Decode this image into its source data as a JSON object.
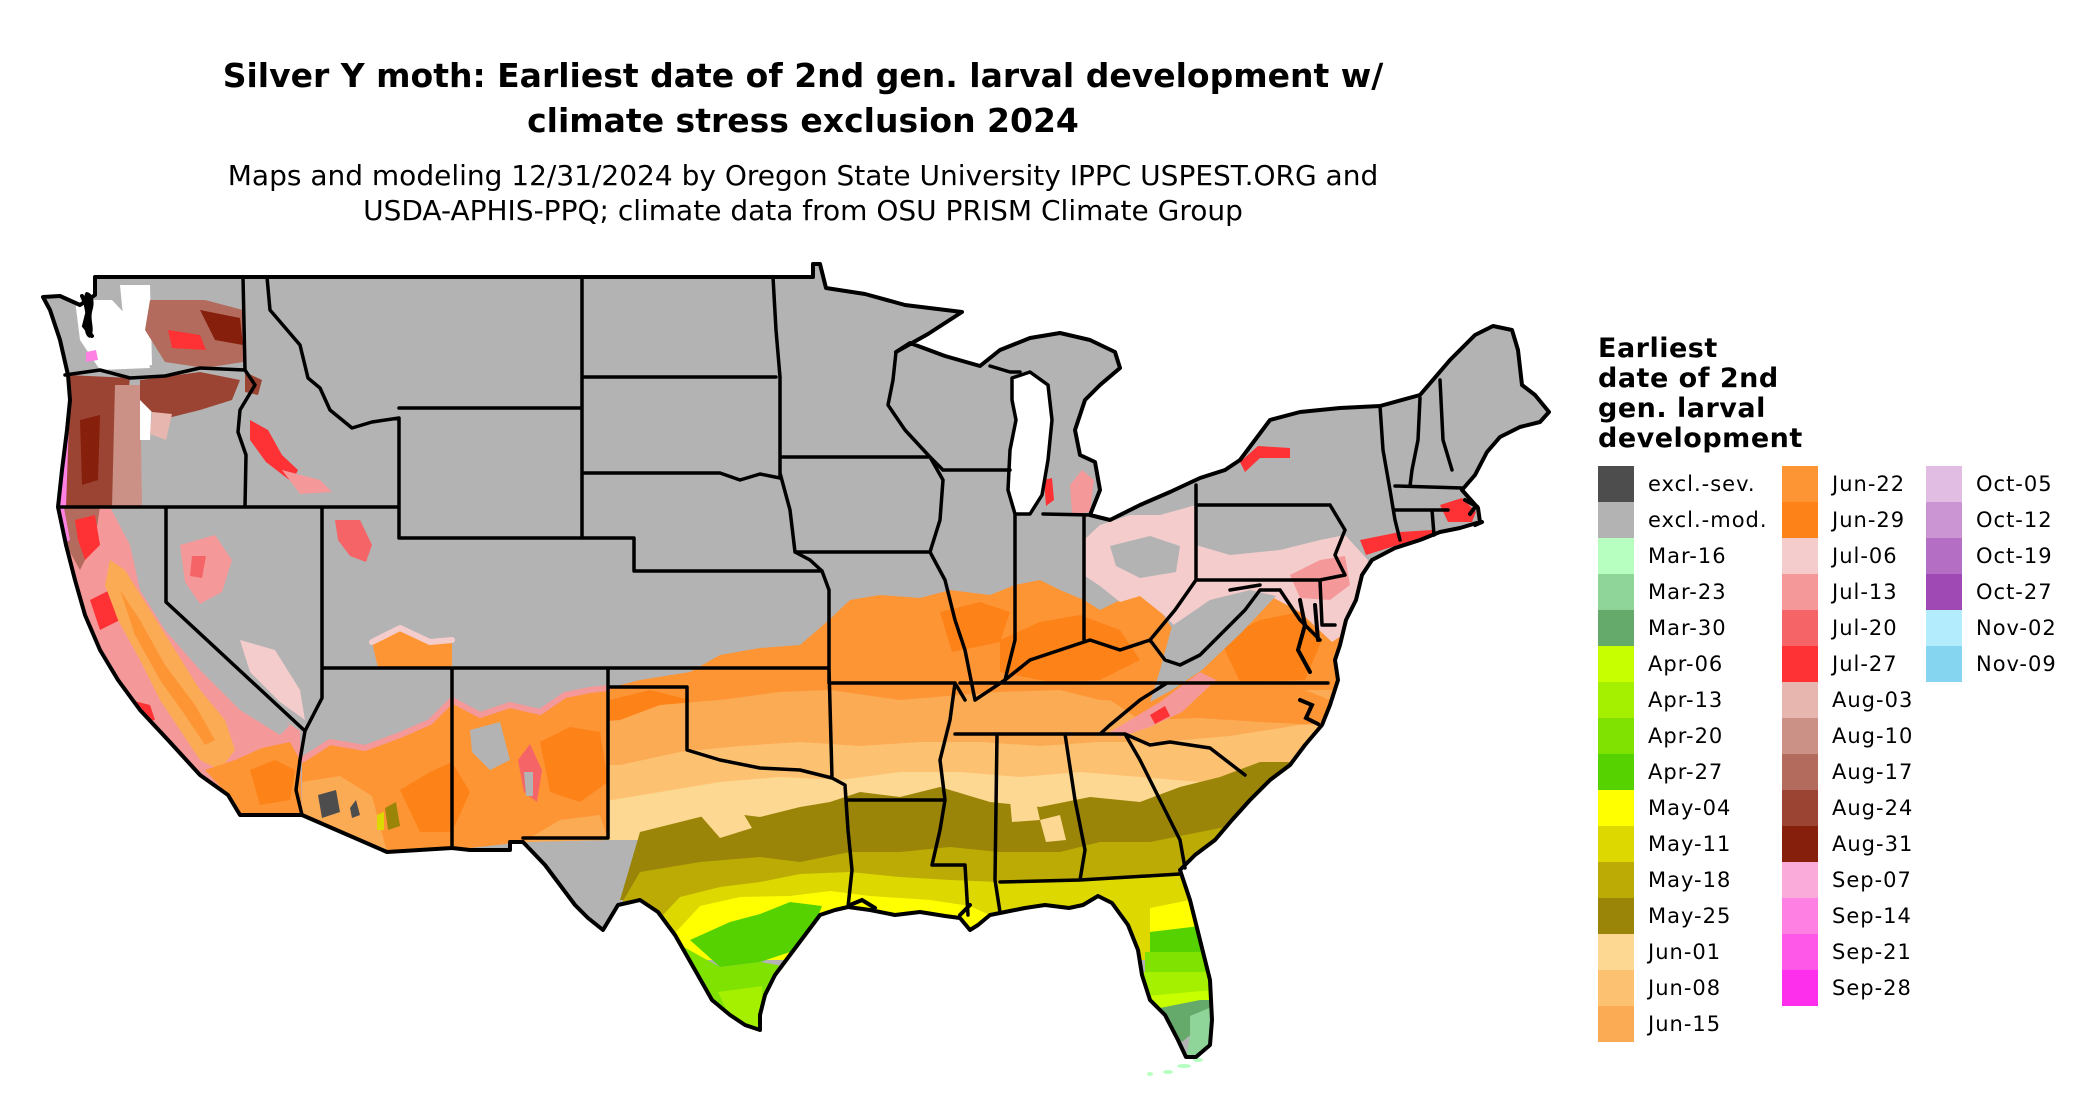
{
  "title": {
    "line1": "Silver Y moth: Earliest date of 2nd gen. larval development w/",
    "line2": "climate stress exclusion 2024"
  },
  "subtitle": {
    "line1": "Maps and modeling 12/31/2024 by Oregon State University IPPC USPEST.ORG and",
    "line2": "USDA-APHIS-PPQ; climate data from OSU PRISM Climate Group"
  },
  "legend": {
    "title_lines": [
      "Earliest",
      "date of 2nd",
      "gen. larval",
      "development"
    ],
    "items": [
      {
        "label": "excl.-sev.",
        "color": "#4d4d4d"
      },
      {
        "label": "excl.-mod.",
        "color": "#b3b3b3"
      },
      {
        "label": "Mar-16",
        "color": "#b6ffc0"
      },
      {
        "label": "Mar-23",
        "color": "#8fd498"
      },
      {
        "label": "Mar-30",
        "color": "#66aa6b"
      },
      {
        "label": "Apr-06",
        "color": "#c8ff00"
      },
      {
        "label": "Apr-13",
        "color": "#a5f000"
      },
      {
        "label": "Apr-20",
        "color": "#80e200"
      },
      {
        "label": "Apr-27",
        "color": "#55d200"
      },
      {
        "label": "May-04",
        "color": "#ffff00"
      },
      {
        "label": "May-11",
        "color": "#ddd800"
      },
      {
        "label": "May-18",
        "color": "#bbab04"
      },
      {
        "label": "May-25",
        "color": "#9a8508"
      },
      {
        "label": "Jun-01",
        "color": "#fdd892"
      },
      {
        "label": "Jun-08",
        "color": "#fdc271"
      },
      {
        "label": "Jun-15",
        "color": "#fcab55"
      },
      {
        "label": "Jun-22",
        "color": "#fd9535"
      },
      {
        "label": "Jun-29",
        "color": "#fd8218"
      },
      {
        "label": "Jul-06",
        "color": "#f4cccc"
      },
      {
        "label": "Jul-13",
        "color": "#f49899"
      },
      {
        "label": "Jul-20",
        "color": "#f56467"
      },
      {
        "label": "Jul-27",
        "color": "#fe3234"
      },
      {
        "label": "Aug-03",
        "color": "#e6b6af"
      },
      {
        "label": "Aug-10",
        "color": "#cb9086"
      },
      {
        "label": "Aug-17",
        "color": "#b26b5c"
      },
      {
        "label": "Aug-24",
        "color": "#9b4433"
      },
      {
        "label": "Aug-31",
        "color": "#871f0d"
      },
      {
        "label": "Sep-07",
        "color": "#fbabd9"
      },
      {
        "label": "Sep-14",
        "color": "#fd80e2"
      },
      {
        "label": "Sep-21",
        "color": "#fd58e8"
      },
      {
        "label": "Sep-28",
        "color": "#fd2fed"
      },
      {
        "label": "Oct-05",
        "color": "#e1bde4"
      },
      {
        "label": "Oct-12",
        "color": "#cb95d4"
      },
      {
        "label": "Oct-19",
        "color": "#b46ec4"
      },
      {
        "label": "Oct-27",
        "color": "#9e49b4"
      },
      {
        "label": "Nov-02",
        "color": "#b3ecfc"
      },
      {
        "label": "Nov-09",
        "color": "#85d4f0"
      }
    ]
  }
}
